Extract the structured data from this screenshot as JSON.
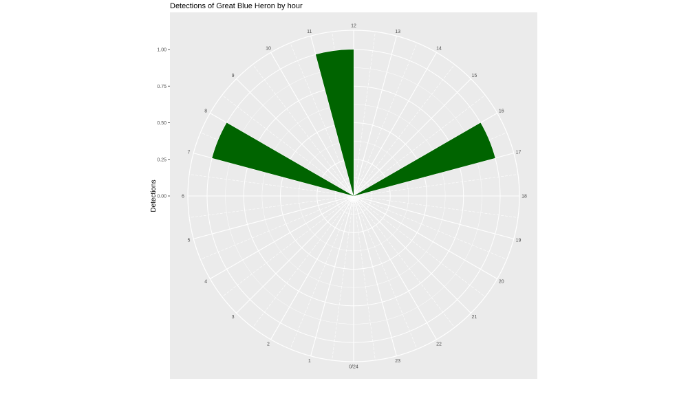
{
  "chart_data": {
    "type": "bar",
    "coord": "polar",
    "title": "Detections of Great Blue Heron by hour",
    "xlabel": "",
    "ylabel": "Detections",
    "categories": [
      0,
      1,
      2,
      3,
      4,
      5,
      6,
      7,
      8,
      9,
      10,
      11,
      12,
      13,
      14,
      15,
      16,
      17,
      18,
      19,
      20,
      21,
      22,
      23
    ],
    "values": [
      0,
      0,
      0,
      0,
      0,
      0,
      0,
      1,
      0,
      0,
      0,
      1,
      0,
      0,
      0,
      0,
      1,
      0,
      0,
      0,
      0,
      0,
      0,
      0
    ],
    "x_tick_labels": [
      "0/24",
      "1",
      "2",
      "3",
      "4",
      "5",
      "6",
      "7",
      "8",
      "9",
      "10",
      "11",
      "12",
      "13",
      "14",
      "15",
      "16",
      "17",
      "18",
      "19",
      "20",
      "21",
      "22",
      "23"
    ],
    "y_tick_labels": [
      "0.00",
      "0.25",
      "0.50",
      "0.75",
      "1.00"
    ],
    "y_ticks": [
      0,
      0.25,
      0.5,
      0.75,
      1.0
    ],
    "ylim": [
      0,
      1.0
    ],
    "grid": true,
    "colors": {
      "bar": "#006400",
      "panel": "#ebebeb",
      "grid": "#ffffff"
    }
  }
}
